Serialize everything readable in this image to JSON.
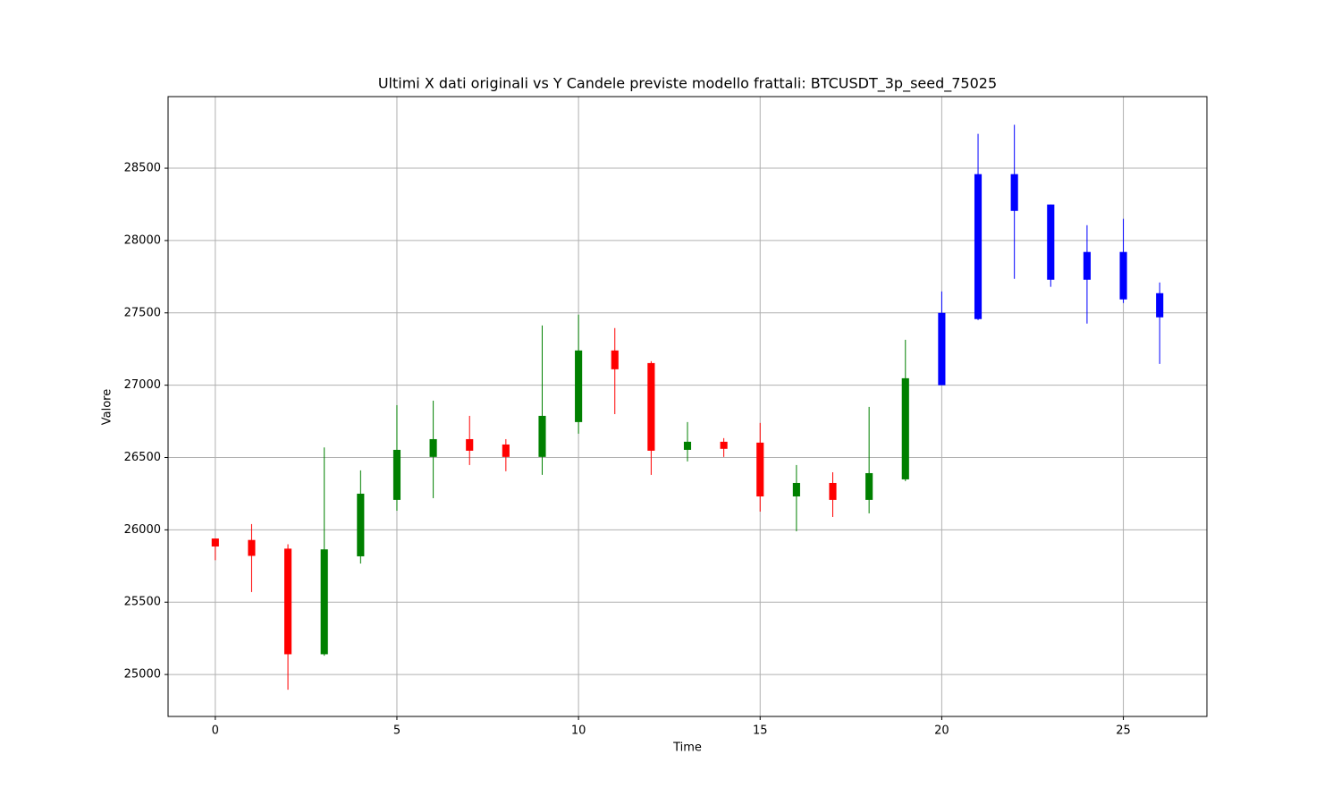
{
  "chart_data": {
    "type": "candlestick",
    "title": "Ultimi X dati originali vs Y Candele previste modello frattali: BTCUSDT_3p_seed_75025",
    "x_label": "Time",
    "y_label": "Valore",
    "x": [
      0,
      1,
      2,
      3,
      4,
      5,
      6,
      7,
      8,
      9,
      10,
      11,
      12,
      13,
      14,
      15,
      16,
      17,
      18,
      19,
      20,
      21,
      22,
      23,
      24,
      25,
      26
    ],
    "open": [
      25940,
      25930,
      25870,
      25140,
      25817,
      26207,
      26504,
      26627,
      26590,
      26504,
      26745,
      27240,
      27153,
      26553,
      26609,
      26603,
      26231,
      26324,
      26207,
      26349,
      27000,
      27457,
      28459,
      28249,
      27921,
      27921,
      27636
    ],
    "high": [
      25940,
      26040,
      25900,
      26570,
      26411,
      26862,
      26893,
      26788,
      26627,
      27413,
      27488,
      27395,
      27166,
      26745,
      26634,
      26739,
      26448,
      26398,
      26850,
      27314,
      27648,
      28738,
      28800,
      28249,
      28106,
      28150,
      27710
    ],
    "low": [
      25790,
      25570,
      24895,
      25130,
      25767,
      26132,
      26219,
      26448,
      26405,
      26380,
      26665,
      26800,
      26380,
      26473,
      26504,
      26126,
      25990,
      26089,
      26114,
      26337,
      27000,
      27450,
      27735,
      27680,
      27426,
      27568,
      27147
    ],
    "close": [
      25885,
      25820,
      25140,
      25865,
      26250,
      26553,
      26627,
      26547,
      26504,
      26788,
      27240,
      27110,
      26547,
      26609,
      26560,
      26231,
      26324,
      26207,
      26392,
      27048,
      27500,
      28459,
      28205,
      27729,
      27729,
      27593,
      27469
    ],
    "colors": [
      "red",
      "red",
      "red",
      "green",
      "green",
      "green",
      "green",
      "red",
      "red",
      "green",
      "green",
      "red",
      "red",
      "green",
      "red",
      "red",
      "green",
      "red",
      "green",
      "green",
      "blue",
      "blue",
      "blue",
      "blue",
      "blue",
      "blue",
      "blue"
    ],
    "xlim": [
      -1.3,
      27.3
    ],
    "xticks": [
      0,
      5,
      10,
      15,
      20,
      25
    ],
    "ylim": [
      24710,
      28995
    ],
    "yticks": [
      25000,
      25500,
      26000,
      26500,
      27000,
      27500,
      28000,
      28500
    ],
    "grid": true
  }
}
